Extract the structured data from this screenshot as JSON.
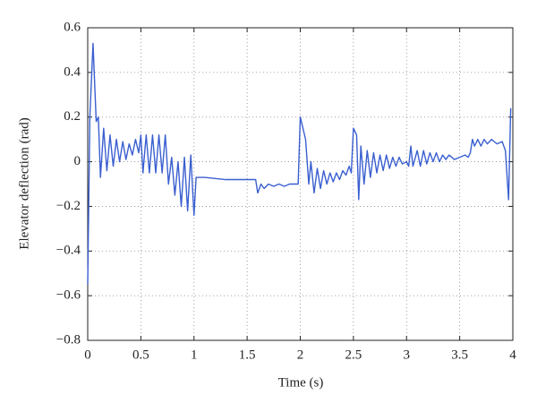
{
  "chart_data": {
    "type": "line",
    "xlabel": "Time (s)",
    "ylabel": "Elevator deflection (rad)",
    "xlim": [
      0,
      4
    ],
    "ylim": [
      -0.8,
      0.6
    ],
    "xticks": [
      0,
      0.5,
      1,
      1.5,
      2,
      2.5,
      3,
      3.5,
      4
    ],
    "yticks": [
      {
        "value": -0.8,
        "label": "−0.8"
      },
      {
        "value": -0.6,
        "label": "−0.6"
      },
      {
        "value": -0.4,
        "label": "−0.4"
      },
      {
        "value": -0.2,
        "label": "−0.2"
      },
      0,
      0.2,
      0.4,
      0.6
    ],
    "grid": true,
    "series": [
      {
        "color": "#3a5fd0",
        "x": [
          0,
          0.02,
          0.05,
          0.08,
          0.1,
          0.12,
          0.15,
          0.18,
          0.21,
          0.24,
          0.27,
          0.3,
          0.33,
          0.36,
          0.39,
          0.42,
          0.45,
          0.48,
          0.5,
          0.52,
          0.55,
          0.58,
          0.61,
          0.64,
          0.67,
          0.7,
          0.73,
          0.76,
          0.79,
          0.82,
          0.85,
          0.88,
          0.91,
          0.94,
          0.97,
          1.0,
          1.02,
          1.1,
          1.3,
          1.5,
          1.58,
          1.6,
          1.63,
          1.66,
          1.7,
          1.75,
          1.8,
          1.85,
          1.9,
          1.98,
          2.0,
          2.05,
          2.08,
          2.1,
          2.13,
          2.16,
          2.19,
          2.22,
          2.25,
          2.28,
          2.31,
          2.34,
          2.37,
          2.4,
          2.43,
          2.46,
          2.48,
          2.5,
          2.53,
          2.55,
          2.57,
          2.6,
          2.63,
          2.66,
          2.69,
          2.72,
          2.75,
          2.78,
          2.81,
          2.84,
          2.87,
          2.9,
          2.93,
          2.96,
          3.0,
          3.02,
          3.04,
          3.06,
          3.1,
          3.13,
          3.16,
          3.19,
          3.22,
          3.25,
          3.28,
          3.31,
          3.34,
          3.37,
          3.4,
          3.45,
          3.5,
          3.55,
          3.58,
          3.6,
          3.62,
          3.64,
          3.67,
          3.7,
          3.73,
          3.76,
          3.8,
          3.85,
          3.9,
          3.93,
          3.96,
          3.98
        ],
        "values": [
          -0.55,
          0.2,
          0.53,
          0.18,
          0.2,
          -0.07,
          0.15,
          -0.04,
          0.12,
          -0.02,
          0.1,
          0.0,
          0.09,
          0.01,
          0.08,
          0.03,
          0.1,
          0.04,
          0.12,
          -0.05,
          0.12,
          -0.05,
          0.12,
          -0.05,
          0.12,
          -0.05,
          0.12,
          -0.1,
          0.02,
          -0.15,
          0.0,
          -0.2,
          0.02,
          -0.22,
          0.03,
          -0.24,
          -0.07,
          -0.07,
          -0.08,
          -0.08,
          -0.08,
          -0.14,
          -0.1,
          -0.12,
          -0.1,
          -0.11,
          -0.1,
          -0.11,
          -0.1,
          -0.1,
          0.2,
          0.1,
          -0.1,
          0.0,
          -0.14,
          -0.03,
          -0.12,
          -0.04,
          -0.1,
          -0.05,
          -0.09,
          -0.05,
          -0.08,
          -0.04,
          -0.06,
          -0.02,
          -0.05,
          0.15,
          0.12,
          -0.17,
          0.07,
          -0.1,
          0.05,
          -0.07,
          0.04,
          -0.05,
          0.03,
          -0.04,
          0.03,
          -0.03,
          0.02,
          -0.02,
          0.02,
          -0.01,
          0.0,
          -0.02,
          0.07,
          -0.02,
          0.05,
          -0.02,
          0.05,
          -0.01,
          0.04,
          0.0,
          0.04,
          0.0,
          0.03,
          0.01,
          0.03,
          0.01,
          0.02,
          0.03,
          0.02,
          0.04,
          0.1,
          0.07,
          0.1,
          0.07,
          0.1,
          0.08,
          0.1,
          0.08,
          0.09,
          0.05,
          -0.17,
          0.24
        ]
      }
    ]
  }
}
